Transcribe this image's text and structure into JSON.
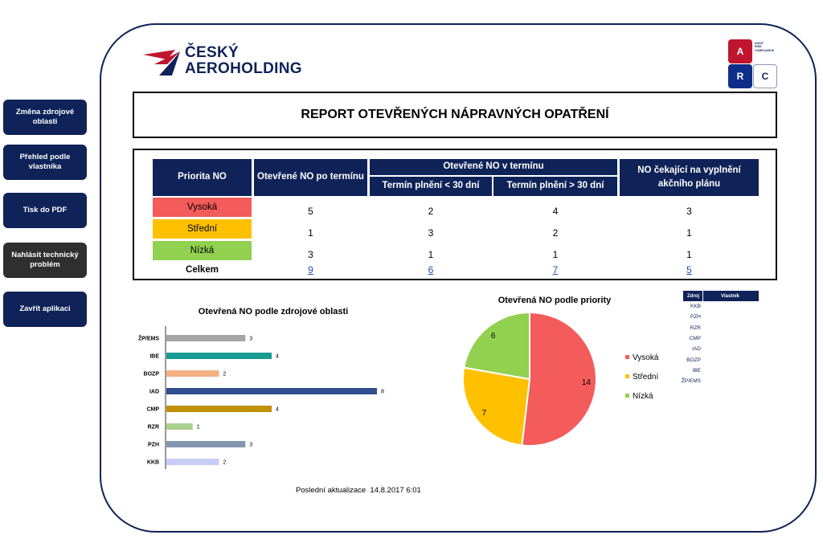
{
  "sidebar": {
    "buttons": [
      {
        "label": "Změna zdrojové oblasti"
      },
      {
        "label": "Přehled podle vlastníka"
      },
      {
        "label": "Tisk do PDF"
      },
      {
        "label": "Nahlásit technický problém"
      },
      {
        "label": "Zavřít aplikaci"
      }
    ]
  },
  "logo": {
    "line1": "ČESKÝ",
    "line2": "AEROHOLDING"
  },
  "arc_badge": {
    "a": "A",
    "r": "R",
    "c": "C",
    "caption1": "AUDIT",
    "caption2": "RISK",
    "caption3": "COMPLIANCE"
  },
  "report": {
    "title": "REPORT OTEVŘENÝCH NÁPRAVNÝCH OPATŘENÍ"
  },
  "table": {
    "headers": {
      "priority": "Priorita NO",
      "overdue": "Otevřené NO po termínu",
      "in_term": "Otevřené NO v termínu",
      "lt30": "Termín plnění < 30 dní",
      "gt30": "Termín plnění > 30 dní",
      "waiting": "NO čekající na vyplnění akčního plánu"
    },
    "rows": [
      {
        "priority": "Vysoká",
        "color": "#f45b5b",
        "overdue": "5",
        "lt30": "2",
        "gt30": "4",
        "waiting": "3"
      },
      {
        "priority": "Střední",
        "color": "#ffc000",
        "overdue": "1",
        "lt30": "3",
        "gt30": "2",
        "waiting": "1"
      },
      {
        "priority": "Nízká",
        "color": "#92d050",
        "overdue": "3",
        "lt30": "1",
        "gt30": "1",
        "waiting": "1"
      }
    ],
    "total": {
      "label": "Celkem",
      "overdue": "9",
      "lt30": "6",
      "gt30": "7",
      "waiting": "5"
    }
  },
  "chart_data": [
    {
      "type": "bar",
      "orientation": "horizontal",
      "title": "Otevřená NO podle zdrojové oblasti",
      "categories": [
        "ŽP/EMS",
        "IBE",
        "BOZP",
        "IAD",
        "CMP",
        "RZR",
        "PZH",
        "KKB"
      ],
      "values": [
        3,
        4,
        2,
        8,
        4,
        1,
        3,
        2
      ],
      "colors": [
        "#a5a5a5",
        "#1a9b93",
        "#f4b183",
        "#2f4e8f",
        "#bf9000",
        "#a9d18e",
        "#8497b0",
        "#c9cdf5"
      ],
      "xlim": [
        0,
        8
      ]
    },
    {
      "type": "pie",
      "title": "Otevřená NO podle priority",
      "categories": [
        "Vysoká",
        "Střední",
        "Nízká"
      ],
      "values": [
        14,
        7,
        6
      ],
      "colors": [
        "#f45b5b",
        "#ffc000",
        "#92d050"
      ],
      "legend": "right"
    }
  ],
  "mini_table": {
    "headers": {
      "source": "Zdroj",
      "owner": "Vlastník"
    },
    "items": [
      "KKB",
      "PZH",
      "RZR",
      "CMP",
      "IAD",
      "BOZP",
      "IBE",
      "ŽP/EMS"
    ]
  },
  "footer": {
    "last_update_label": "Poslední aktualizace",
    "last_update_value": "14.8.2017 6:01"
  }
}
